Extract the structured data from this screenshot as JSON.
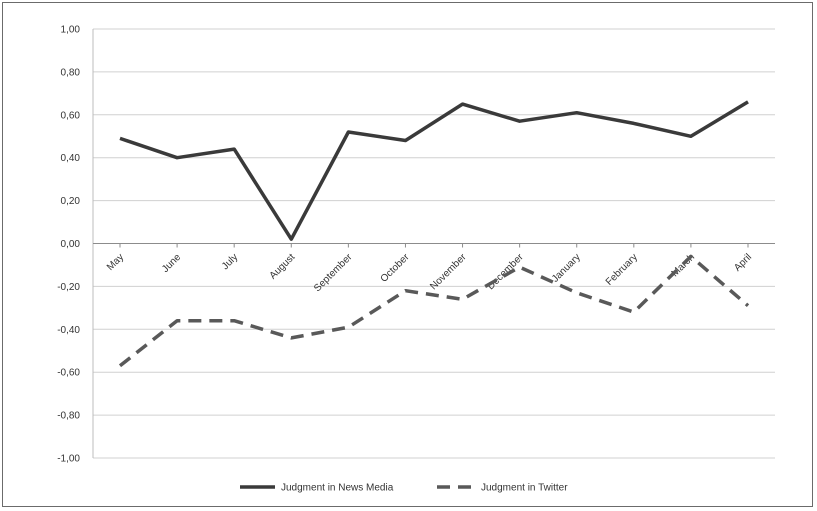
{
  "chart_data": {
    "type": "line",
    "categories": [
      "May",
      "June",
      "July",
      "August",
      "September",
      "October",
      "November",
      "December",
      "January",
      "February",
      "March",
      "April"
    ],
    "series": [
      {
        "name": "Judgment in News Media",
        "values": [
          0.49,
          0.4,
          0.44,
          0.02,
          0.52,
          0.48,
          0.65,
          0.57,
          0.61,
          0.56,
          0.5,
          0.66
        ],
        "color": "#3a3a3a",
        "dash": "solid"
      },
      {
        "name": "Judgment in Twitter",
        "values": [
          -0.57,
          -0.36,
          -0.36,
          -0.44,
          -0.39,
          -0.22,
          -0.26,
          -0.11,
          -0.23,
          -0.32,
          -0.06,
          -0.29
        ],
        "color": "#595959",
        "dash": "dashed"
      }
    ],
    "yticks": [
      "1,00",
      "0,80",
      "0,60",
      "0,40",
      "0,20",
      "0,00",
      "-0,20",
      "-0,40",
      "-0,60",
      "-0,80",
      "-1,00"
    ],
    "ylim": [
      -1,
      1
    ],
    "grid": true,
    "legend_position": "bottom"
  }
}
